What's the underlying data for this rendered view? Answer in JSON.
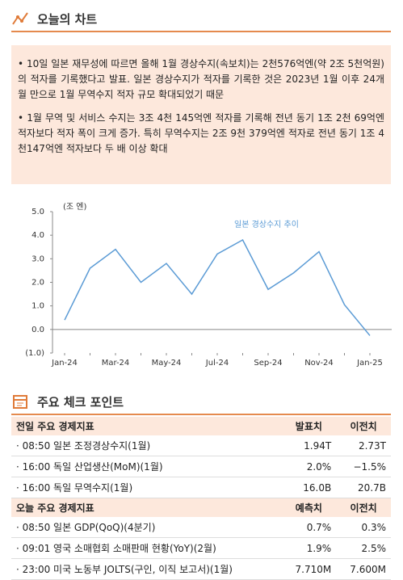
{
  "header": {
    "title": "오늘의 차트"
  },
  "bullets": [
    "10일 일본 재무성에 따르면 올해 1월 경상수지(속보치)는 2천576억엔(약 2조 5천억원)의 적자를 기록했다고 발표. 일본 경상수지가 적자를 기록한 것은 2023년 1월 이후 24개월 만으로 1월 무역수지 적자 규모 확대되었기 때문",
    "1월 무역 및 서비스 수지는 3조 4천 145억엔 적자를 기록해 전년 동기 1조 2천 69억엔 적자보다 적자 폭이 크게 증가. 특히 무역수지는 2조 9천 379억엔 적자로 전년 동기 1조 4천147억엔 적자보다 두 배 이상 확대"
  ],
  "chart_data": {
    "type": "line",
    "y_label": "(조 엔)",
    "categories": [
      "Jan-24",
      null,
      "Mar-24",
      null,
      "May-24",
      null,
      "Jul-24",
      null,
      "Sep-24",
      null,
      "Nov-24",
      null,
      "Jan-25"
    ],
    "series": [
      {
        "name": "일본 경상수지 추이",
        "color": "#5b9bd5",
        "values": [
          0.4,
          2.6,
          3.4,
          2.0,
          2.8,
          1.5,
          3.2,
          3.8,
          1.7,
          2.4,
          3.3,
          1.05,
          -0.26
        ]
      }
    ],
    "ylim": [
      -1,
      5
    ],
    "yticks": [
      {
        "value": -1,
        "label": "(1.0)"
      },
      {
        "value": 0,
        "label": "0.0"
      },
      {
        "value": 1,
        "label": "1.0"
      },
      {
        "value": 2,
        "label": "2.0"
      },
      {
        "value": 3,
        "label": "3.0"
      },
      {
        "value": 4,
        "label": "4.0"
      },
      {
        "value": 5,
        "label": "5.0"
      }
    ]
  },
  "section": {
    "title": "주요 체크 포인트"
  },
  "table": {
    "groups": [
      {
        "header": [
          "전일 주요 경제지표",
          "발표치",
          "이전치"
        ],
        "rows": [
          [
            "08:50 일본 조정경상수지(1월)",
            "1.94T",
            "2.73T"
          ],
          [
            "16:00 독일 산업생산(MoM)(1월)",
            "2.0%",
            "−1.5%"
          ],
          [
            "16:00 독일 무역수지(1월)",
            "16.0B",
            "20.7B"
          ]
        ]
      },
      {
        "header": [
          "오늘 주요 경제지표",
          "예측치",
          "이전치"
        ],
        "rows": [
          [
            "08:50 일본 GDP(QoQ)(4분기)",
            "0.7%",
            "0.3%"
          ],
          [
            "09:01 영국 소매협회 소매판매 현황(YoY)(2월)",
            "1.9%",
            "2.5%"
          ],
          [
            "23:00 미국 노동부 JOLTS(구인, 이직 보고서)(1월)",
            "7.710M",
            "7.600M"
          ]
        ]
      }
    ]
  }
}
